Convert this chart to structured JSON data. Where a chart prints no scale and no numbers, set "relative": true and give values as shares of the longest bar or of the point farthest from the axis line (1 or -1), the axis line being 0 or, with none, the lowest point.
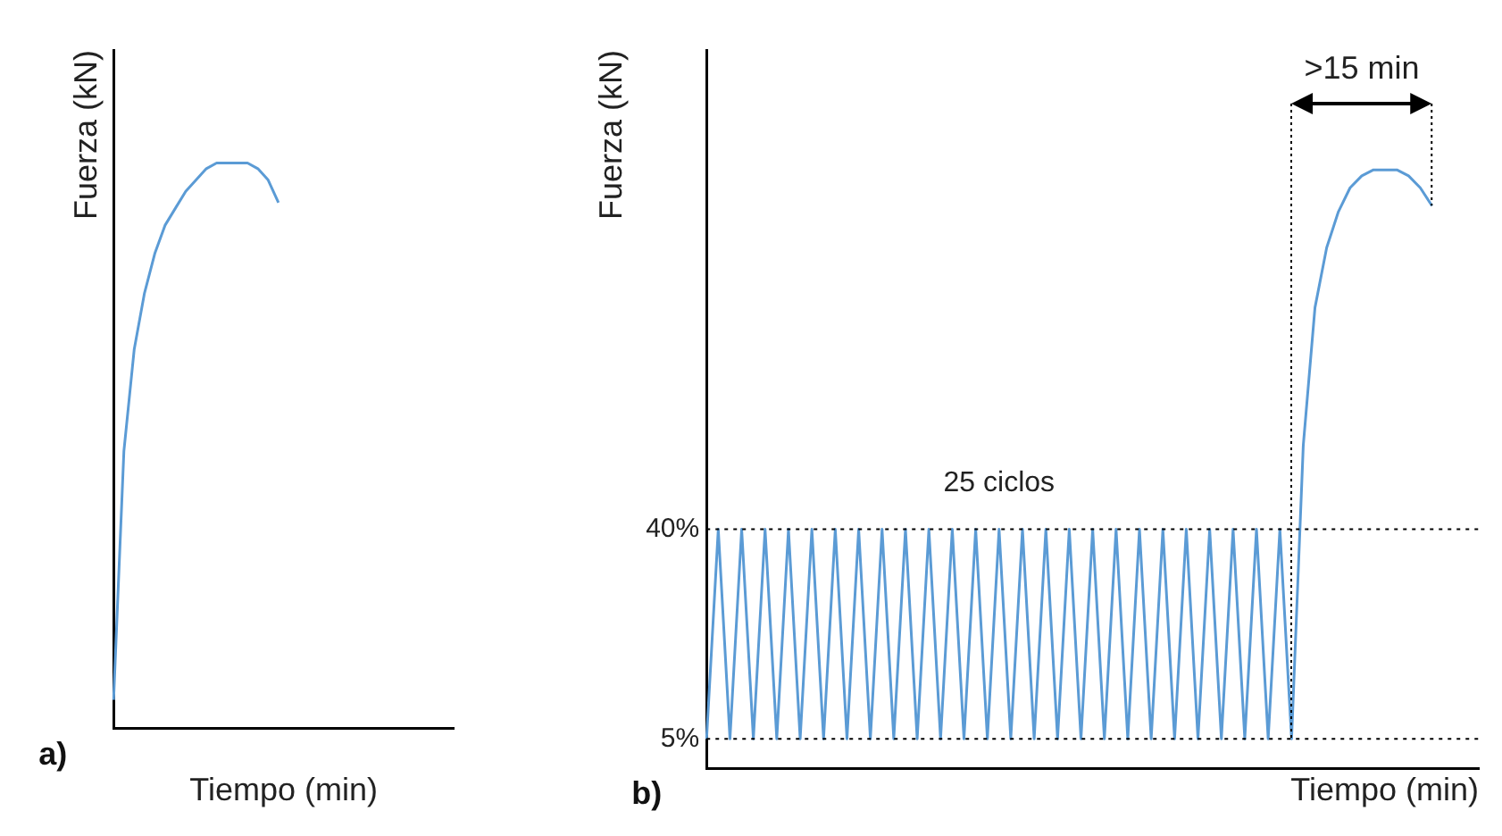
{
  "chart_data": [
    {
      "type": "line",
      "relative": true,
      "xlabel": "Tiempo (min)",
      "ylabel": "Fuerza (kN)",
      "annotations": [
        "a)"
      ],
      "grid": false,
      "legend": false,
      "marker": "none",
      "categories": [
        null,
        null,
        null,
        null,
        null,
        null,
        null,
        null,
        null,
        null,
        null,
        null,
        null,
        null,
        null,
        null,
        null,
        null,
        null,
        null,
        null,
        null,
        null,
        null,
        null,
        null,
        null,
        null,
        null,
        null,
        null,
        null,
        null,
        null
      ],
      "series": [
        {
          "color": "#5b9bd5",
          "values": [
            0.05,
            0.49,
            0.67,
            0.77,
            0.84,
            0.89,
            0.92,
            0.95,
            0.97,
            0.99,
            1.0,
            1.0,
            1.0,
            1.0,
            0.99,
            0.97,
            0.93,
            null,
            null,
            null,
            null,
            null,
            null,
            null,
            null,
            null,
            null,
            null,
            null,
            null,
            null,
            null,
            null,
            null
          ]
        }
      ]
    },
    {
      "type": "line",
      "xlabel": "Tiempo (min)",
      "ylabel": "Fuerza (kN)",
      "annotations": [
        "b)",
        "25 ciclos",
        ">15 min"
      ],
      "grid": false,
      "legend": false,
      "marker": "none",
      "tick_labels": "y",
      "ylim": [
        0,
        120
      ],
      "yticks": [
        {
          "value": 5,
          "label": "5%"
        },
        {
          "value": 40,
          "label": "40%"
        }
      ],
      "ref_lines": [
        {
          "axis": "y",
          "value": 40,
          "color": "#000000",
          "line_style": "dotted"
        },
        {
          "axis": "y",
          "value": 5,
          "color": "#000000",
          "line_style": "dotted"
        }
      ],
      "categories": [
        null,
        null,
        null,
        null,
        null,
        null,
        null,
        null,
        null,
        null,
        null,
        null,
        null,
        null,
        null,
        null,
        null,
        null,
        null,
        null,
        null,
        null,
        null,
        null,
        null,
        null,
        null,
        null,
        null,
        null,
        null,
        null,
        null,
        null,
        null,
        null,
        null,
        null,
        null,
        null,
        null,
        null,
        null,
        null,
        null,
        null,
        null,
        null,
        null,
        null,
        null,
        null,
        null,
        null,
        null,
        null,
        null,
        null,
        null,
        null,
        null,
        null,
        null,
        null,
        null,
        null,
        null
      ],
      "series": [
        {
          "color": "#5b9bd5",
          "values": [
            5,
            40,
            5,
            40,
            5,
            40,
            5,
            40,
            5,
            40,
            5,
            40,
            5,
            40,
            5,
            40,
            5,
            40,
            5,
            40,
            5,
            40,
            5,
            40,
            5,
            40,
            5,
            40,
            5,
            40,
            5,
            40,
            5,
            40,
            5,
            40,
            5,
            40,
            5,
            40,
            5,
            40,
            5,
            40,
            5,
            40,
            5,
            40,
            5,
            40,
            5,
            54,
            77,
            87,
            93,
            97,
            99,
            100,
            100,
            100,
            99,
            97,
            94,
            null,
            null,
            null,
            null
          ]
        }
      ]
    }
  ]
}
